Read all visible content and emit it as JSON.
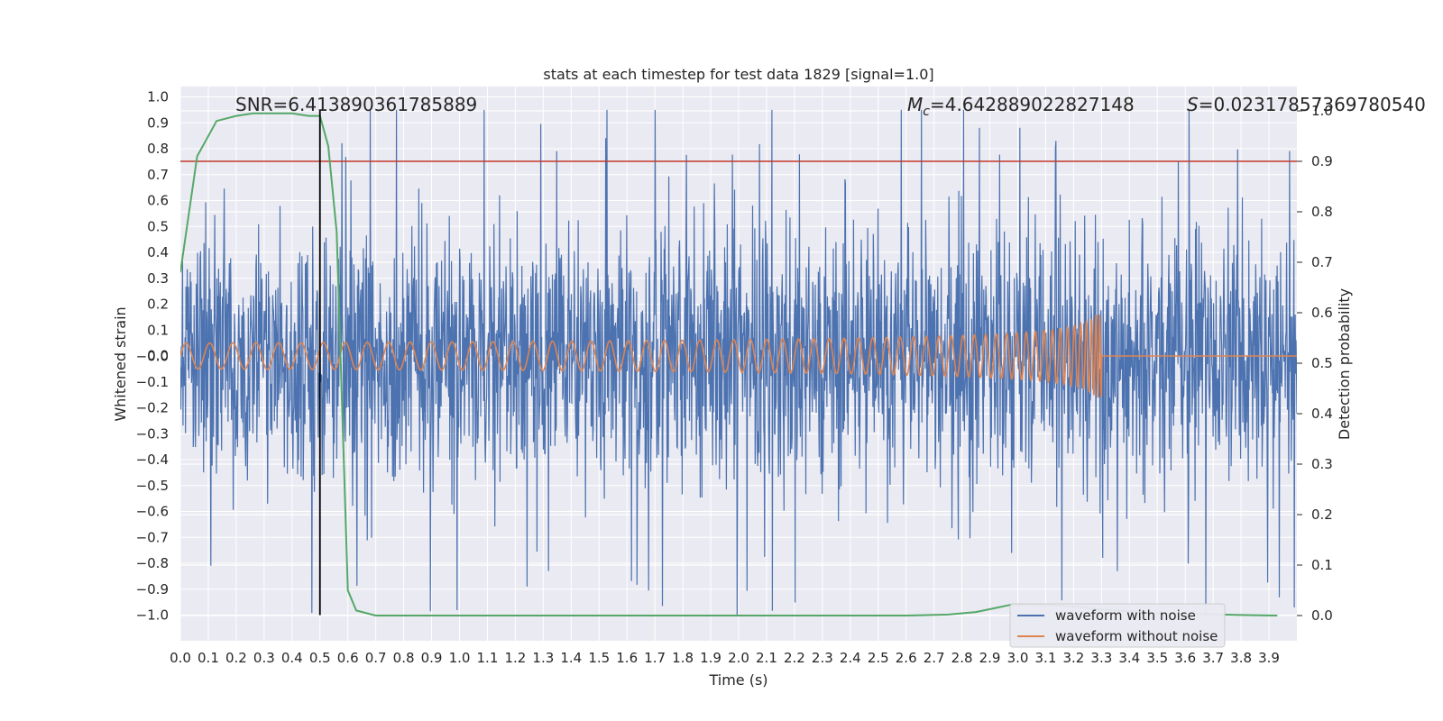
{
  "chart_data": {
    "type": "line",
    "title": "stats at each timestep for test data 1829 [signal=1.0]",
    "xlabel": "Time (s)",
    "ylabel": "Whitened strain",
    "y2label": "Detection probability",
    "xlim": [
      0.0,
      4.0
    ],
    "ylim": [
      -1.09,
      1.05
    ],
    "y2lim": [
      -0.05,
      1.0
    ],
    "xticks": [
      "0.0",
      "0.1",
      "0.2",
      "0.3",
      "0.4",
      "0.5",
      "0.6",
      "0.7",
      "0.8",
      "0.9",
      "1.0",
      "1.1",
      "1.2",
      "1.3",
      "1.4",
      "1.5",
      "1.6",
      "1.7",
      "1.8",
      "1.9",
      "2.0",
      "2.1",
      "2.2",
      "2.3",
      "2.4",
      "2.5",
      "2.6",
      "2.7",
      "2.8",
      "2.9",
      "3.0",
      "3.1",
      "3.2",
      "3.3",
      "3.4",
      "3.5",
      "3.6",
      "3.7",
      "3.8",
      "3.9"
    ],
    "yticks": [
      "1.0",
      "0.9",
      "0.8",
      "0.7",
      "0.6",
      "0.5",
      "0.4",
      "0.3",
      "0.2",
      "0.1",
      "0.0",
      "-0.0",
      "-0.1",
      "-0.2",
      "-0.3",
      "-0.4",
      "-0.5",
      "-0.6",
      "-0.7",
      "-0.8",
      "-0.9",
      "-1.0"
    ],
    "y2ticks": [
      "1.0",
      "0.9",
      "0.8",
      "0.7",
      "0.6",
      "0.5",
      "0.4",
      "0.3",
      "0.2",
      "0.1",
      "0.0"
    ],
    "annotations": {
      "snr": "SNR=6.413890361785889",
      "mc_sub": "c",
      "mc_value": "=4.642889022827148",
      "s_value": "=0.02317857369780540"
    },
    "threshold": {
      "value": 0.9,
      "axis": "y2",
      "color": "#c0392b"
    },
    "marker_line": {
      "x": 0.5,
      "color": "#000000"
    },
    "grid": true,
    "legend": {
      "position": "lower right",
      "entries": [
        "waveform with noise",
        "waveform without noise"
      ]
    },
    "series": [
      {
        "name": "waveform with noise",
        "color": "#4c72b0",
        "description_stats": {
          "typical_amplitude": 0.45,
          "peak_max": 0.95,
          "peak_min": -1.0
        }
      },
      {
        "name": "waveform without noise",
        "color": "#dd8452",
        "chirp": {
          "start_amplitude": 0.05,
          "merger_time": 3.3,
          "merger_amplitude": 0.16,
          "post_merger_value": 0.0
        }
      },
      {
        "name": "detection probability",
        "color": "#55a868",
        "axis": "y2",
        "x": [
          0.0,
          0.06,
          0.13,
          0.2,
          0.26,
          0.33,
          0.4,
          0.46,
          0.5,
          0.53,
          0.56,
          0.6,
          0.63,
          0.7,
          1.0,
          2.0,
          2.6,
          2.75,
          2.85,
          2.92,
          2.98,
          3.05,
          3.2,
          3.3,
          3.5,
          3.8,
          3.93
        ],
        "values": [
          0.68,
          0.91,
          0.98,
          0.99,
          0.995,
          0.995,
          0.995,
          0.99,
          0.99,
          0.93,
          0.76,
          0.05,
          0.01,
          0.0,
          0.0,
          0.0,
          0.0,
          0.002,
          0.007,
          0.015,
          0.022,
          0.022,
          0.018,
          0.012,
          0.005,
          0.001,
          0.0
        ]
      }
    ]
  }
}
